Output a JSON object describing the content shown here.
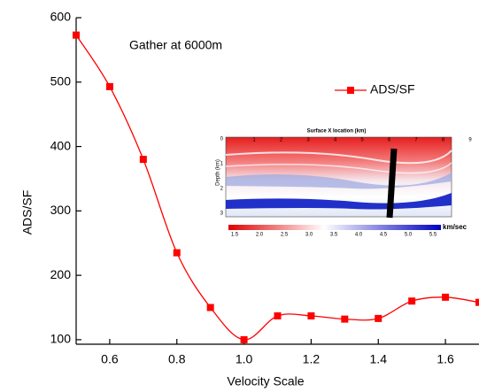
{
  "chart_data": {
    "type": "line",
    "x_label": "Velocity Scale",
    "y_label": "ADS/SF",
    "annotation": "Gather at 6000m",
    "x": [
      0.5,
      0.6,
      0.7,
      0.8,
      0.9,
      1.0,
      1.1,
      1.2,
      1.3,
      1.4,
      1.5,
      1.6,
      1.7
    ],
    "series": [
      {
        "name": "ADS/SF",
        "color": "#ff0000",
        "values": [
          573,
          493,
          380,
          235,
          150,
          100,
          137,
          137,
          132,
          133,
          160,
          166,
          158
        ]
      }
    ],
    "xlim": [
      0.5,
      1.7
    ],
    "xticks": [
      0.6,
      0.8,
      {
        "value": 1.0,
        "label": "1.0"
      },
      1.2,
      1.4,
      1.6
    ],
    "ylim": [
      93,
      600
    ],
    "yticks": [
      100,
      200,
      300,
      400,
      500,
      600
    ],
    "legend": "upper right",
    "inset": {
      "x_label": "Surface X location (km)",
      "y_label": "Depth (km)",
      "xticks": [
        1,
        2,
        3,
        4,
        5,
        6,
        7,
        8,
        9
      ],
      "yticks": [
        0,
        1,
        2,
        3
      ],
      "colorbar_labels": [
        "1.5",
        "2.0",
        "2.5",
        "3.0",
        "3.5",
        "4.0",
        "4.5",
        "5.0",
        "5.5"
      ],
      "colorbar_unit": "km/sec"
    }
  }
}
